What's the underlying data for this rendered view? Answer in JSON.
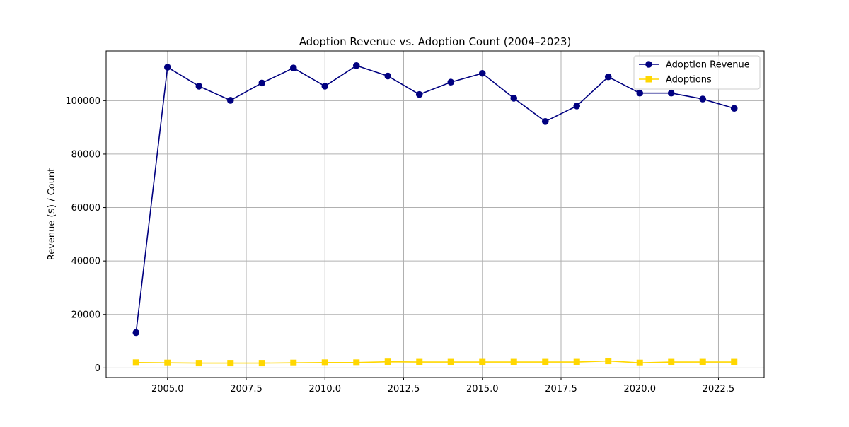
{
  "chart_data": {
    "type": "line",
    "title": "Adoption Revenue vs. Adoption Count (2004–2023)",
    "xlabel": "",
    "ylabel": "Revenue ($) / Count",
    "xlim": [
      2003.05,
      2023.95
    ],
    "ylim": [
      -3600,
      118600
    ],
    "x_ticks": [
      2005.0,
      2007.5,
      2010.0,
      2012.5,
      2015.0,
      2017.5,
      2020.0,
      2022.5
    ],
    "x_tick_labels": [
      "2005.0",
      "2007.5",
      "2010.0",
      "2012.5",
      "2015.0",
      "2017.5",
      "2020.0",
      "2022.5"
    ],
    "y_ticks": [
      0,
      20000,
      40000,
      60000,
      80000,
      100000
    ],
    "y_tick_labels": [
      "0",
      "20000",
      "40000",
      "60000",
      "80000",
      "100000"
    ],
    "grid": true,
    "legend_position": "top-right",
    "x": [
      2004,
      2005,
      2006,
      2007,
      2008,
      2009,
      2010,
      2011,
      2012,
      2013,
      2014,
      2015,
      2016,
      2017,
      2018,
      2019,
      2020,
      2021,
      2022,
      2023
    ],
    "series": [
      {
        "name": "Adoption Revenue",
        "color": "#000080",
        "marker": "circle",
        "values": [
          13200,
          112500,
          105400,
          100100,
          106600,
          112200,
          105400,
          113100,
          109200,
          102300,
          106900,
          110200,
          100900,
          92200,
          98000,
          108900,
          102800,
          102800,
          100600,
          97100
        ]
      },
      {
        "name": "Adoptions",
        "color": "#FFD700",
        "marker": "square",
        "values": [
          2000,
          1900,
          1800,
          1800,
          1800,
          1900,
          2000,
          2000,
          2300,
          2200,
          2200,
          2200,
          2200,
          2200,
          2200,
          2600,
          1900,
          2200,
          2200,
          2200
        ]
      }
    ]
  }
}
